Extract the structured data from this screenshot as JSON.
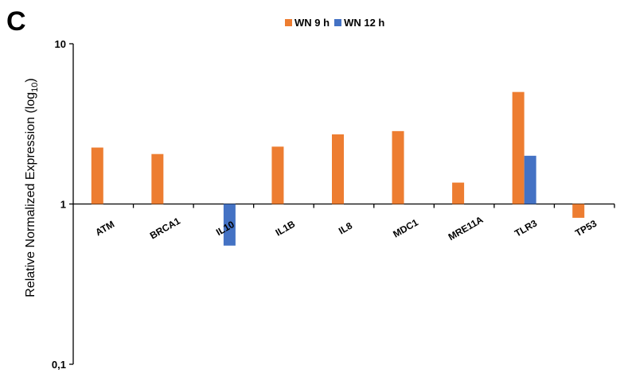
{
  "panel_letter": "C",
  "chart_data": {
    "type": "bar",
    "categories": [
      "ATM",
      "BRCA1",
      "IL10",
      "IL1B",
      "IL8",
      "MDC1",
      "MRE11A",
      "TLR3",
      "TP53"
    ],
    "series": [
      {
        "name": "WN 9 h",
        "color": "#ED7D31",
        "values": [
          2.25,
          2.05,
          null,
          2.28,
          2.72,
          2.85,
          1.36,
          5.0,
          0.82
        ]
      },
      {
        "name": "WN 12 h",
        "color": "#4472C4",
        "values": [
          null,
          null,
          0.55,
          null,
          null,
          null,
          null,
          2.0,
          null
        ]
      }
    ],
    "yscale": "log10",
    "ylim": [
      0.1,
      10
    ],
    "yticks": [
      {
        "value": 0.1,
        "label": "0,1"
      },
      {
        "value": 1,
        "label": "1"
      },
      {
        "value": 10,
        "label": "10"
      }
    ],
    "ylabel_main": "Relative Normalized Expression (log",
    "ylabel_sub": "10",
    "ylabel_end": ")",
    "xlabel": "",
    "legend_position": "top-center",
    "grid": false
  }
}
